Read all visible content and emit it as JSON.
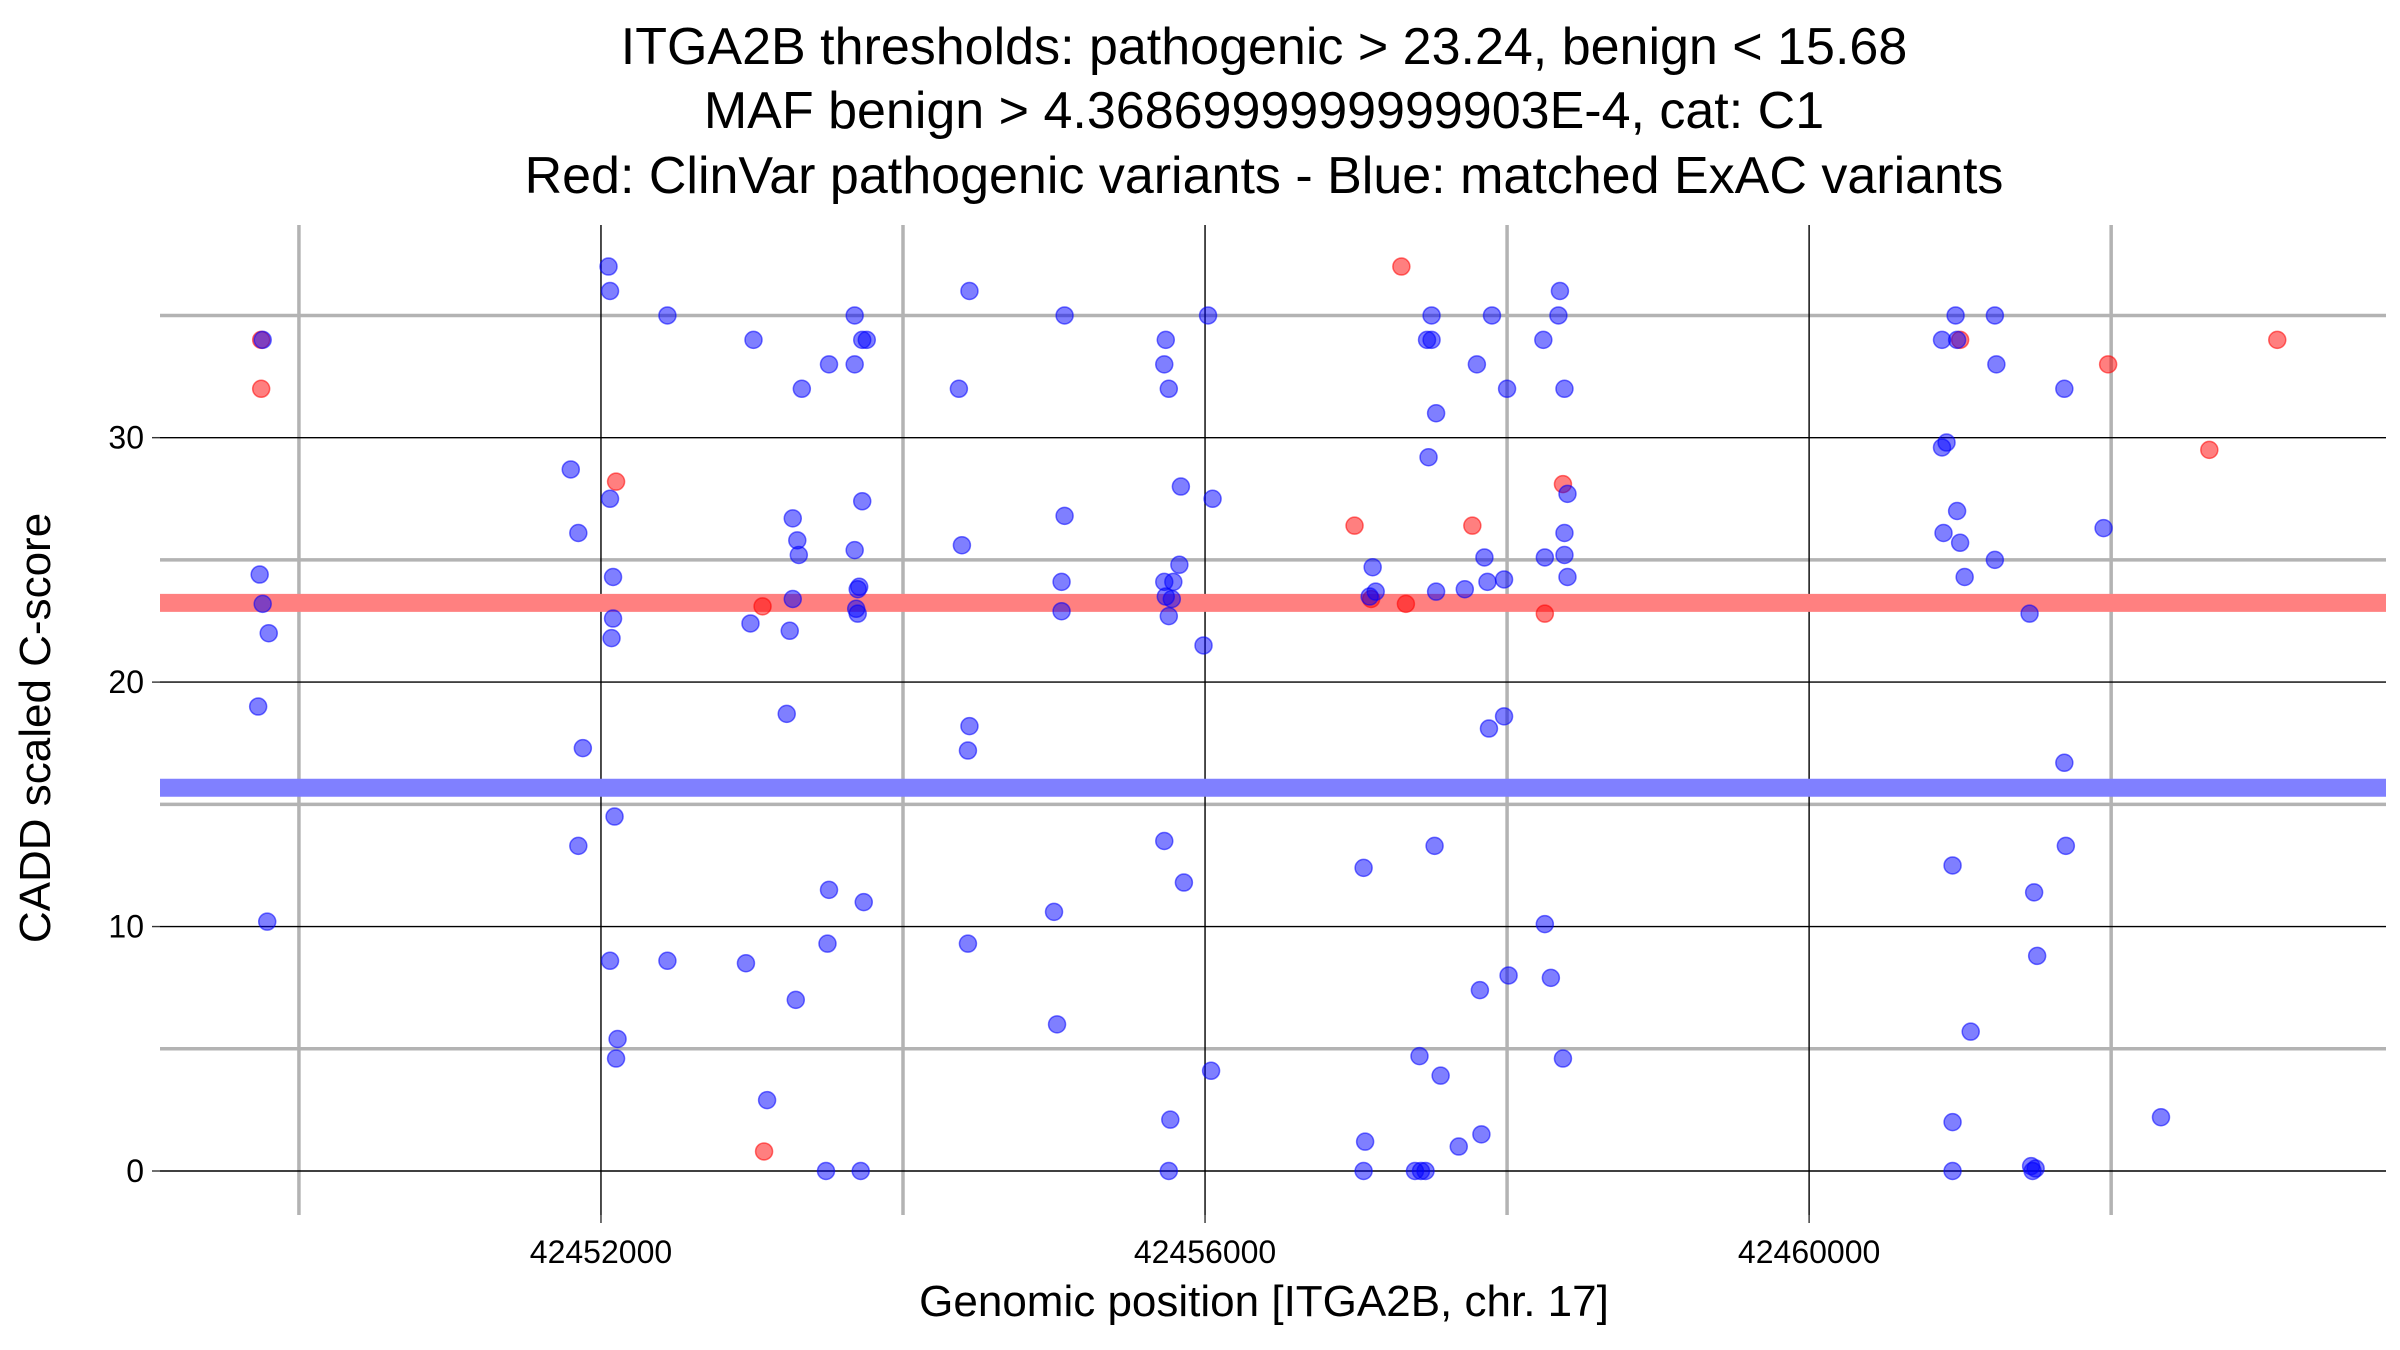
{
  "chart_data": {
    "type": "scatter",
    "title": [
      "ITGA2B thresholds: pathogenic > 23.24, benign < 15.68",
      "MAF benign > 4.3686999999999903E-4, cat: C1",
      "Red: ClinVar pathogenic variants - Blue: matched ExAC variants"
    ],
    "xlabel": "Genomic position [ITGA2B, chr. 17]",
    "ylabel": "CADD scaled C-score",
    "xlim": [
      42449080,
      42463820
    ],
    "ylim": [
      -1.8,
      38.7
    ],
    "x_ticks": [
      42452000,
      42456000,
      42460000
    ],
    "y_ticks": [
      0,
      10,
      20,
      30
    ],
    "x_minor_gridlines": [
      42450000,
      42454000,
      42458000,
      42462000
    ],
    "y_minor_gridlines": [
      5,
      15,
      25,
      35
    ],
    "grid": true,
    "legend": "none",
    "thresholds": {
      "pathogenic": 23.24,
      "benign": 15.68,
      "pathogenic_color": "#ff8080",
      "benign_color": "#8080ff"
    },
    "series": [
      {
        "color": "#ff0000",
        "points": [
          [
            42449750,
            34
          ],
          [
            42449750,
            32
          ],
          [
            42452100,
            28.2
          ],
          [
            42453070,
            23.1
          ],
          [
            42453080,
            0.8
          ],
          [
            42456990,
            26.4
          ],
          [
            42457100,
            23.4
          ],
          [
            42457300,
            37
          ],
          [
            42457330,
            23.2
          ],
          [
            42457770,
            26.4
          ],
          [
            42458250,
            22.8
          ],
          [
            42458370,
            28.1
          ],
          [
            42461000,
            34
          ],
          [
            42461980,
            33
          ],
          [
            42462650,
            29.5
          ],
          [
            42463100,
            34
          ]
        ]
      },
      {
        "color": "#0000ff",
        "points": [
          [
            42449760,
            34
          ],
          [
            42449740,
            24.4
          ],
          [
            42449760,
            23.2
          ],
          [
            42449800,
            22
          ],
          [
            42449730,
            19
          ],
          [
            42449790,
            10.2
          ],
          [
            42451800,
            28.7
          ],
          [
            42451850,
            26.1
          ],
          [
            42451880,
            17.3
          ],
          [
            42451850,
            13.3
          ],
          [
            42452050,
            37
          ],
          [
            42452060,
            36
          ],
          [
            42452060,
            27.5
          ],
          [
            42452080,
            24.3
          ],
          [
            42452080,
            22.6
          ],
          [
            42452070,
            21.8
          ],
          [
            42452090,
            14.5
          ],
          [
            42452060,
            8.6
          ],
          [
            42452110,
            5.4
          ],
          [
            42452100,
            4.6
          ],
          [
            42452440,
            35
          ],
          [
            42452440,
            8.6
          ],
          [
            42453010,
            34
          ],
          [
            42452990,
            22.4
          ],
          [
            42452960,
            8.5
          ],
          [
            42453100,
            2.9
          ],
          [
            42453250,
            22.1
          ],
          [
            42453230,
            18.7
          ],
          [
            42453270,
            26.7
          ],
          [
            42453300,
            25.8
          ],
          [
            42453310,
            25.2
          ],
          [
            42453270,
            23.4
          ],
          [
            42453290,
            7
          ],
          [
            42453330,
            32
          ],
          [
            42453510,
            33
          ],
          [
            42453510,
            11.5
          ],
          [
            42453500,
            9.3
          ],
          [
            42453490,
            0
          ],
          [
            42453680,
            35
          ],
          [
            42453680,
            33
          ],
          [
            42453680,
            25.4
          ],
          [
            42453710,
            23.9
          ],
          [
            42453700,
            23.8
          ],
          [
            42453690,
            23
          ],
          [
            42453700,
            22.8
          ],
          [
            42453730,
            27.4
          ],
          [
            42453740,
            11
          ],
          [
            42453720,
            0
          ],
          [
            42453730,
            34
          ],
          [
            42453760,
            34
          ],
          [
            42454370,
            32
          ],
          [
            42454390,
            25.6
          ],
          [
            42454440,
            36
          ],
          [
            42454440,
            18.2
          ],
          [
            42454430,
            17.2
          ],
          [
            42454430,
            9.3
          ],
          [
            42455070,
            35
          ],
          [
            42455070,
            26.8
          ],
          [
            42455050,
            24.1
          ],
          [
            42455050,
            22.9
          ],
          [
            42455000,
            10.6
          ],
          [
            42455020,
            6
          ],
          [
            42455740,
            34
          ],
          [
            42455730,
            33
          ],
          [
            42455760,
            32
          ],
          [
            42455730,
            24.1
          ],
          [
            42455790,
            24.1
          ],
          [
            42455740,
            23.5
          ],
          [
            42455780,
            23.4
          ],
          [
            42455760,
            22.7
          ],
          [
            42455840,
            28
          ],
          [
            42455830,
            24.8
          ],
          [
            42455730,
            13.5
          ],
          [
            42455860,
            11.8
          ],
          [
            42455770,
            2.1
          ],
          [
            42455760,
            0
          ],
          [
            42456020,
            35
          ],
          [
            42456050,
            27.5
          ],
          [
            42455990,
            21.5
          ],
          [
            42456040,
            4.1
          ],
          [
            42457110,
            24.7
          ],
          [
            42457130,
            23.7
          ],
          [
            42457090,
            23.5
          ],
          [
            42457050,
            12.4
          ],
          [
            42457060,
            1.2
          ],
          [
            42457050,
            0
          ],
          [
            42457500,
            35
          ],
          [
            42457500,
            34
          ],
          [
            42457470,
            34
          ],
          [
            42457530,
            31
          ],
          [
            42457480,
            29.2
          ],
          [
            42457530,
            23.7
          ],
          [
            42457720,
            23.8
          ],
          [
            42457850,
            25.1
          ],
          [
            42457870,
            24.1
          ],
          [
            42457520,
            13.3
          ],
          [
            42457420,
            4.7
          ],
          [
            42457560,
            3.9
          ],
          [
            42457390,
            0
          ],
          [
            42457460,
            0
          ],
          [
            42457430,
            0
          ],
          [
            42457680,
            1
          ],
          [
            42457800,
            33
          ],
          [
            42457820,
            7.4
          ],
          [
            42457830,
            1.5
          ],
          [
            42457900,
            35
          ],
          [
            42457880,
            18.1
          ],
          [
            42458000,
            32
          ],
          [
            42457980,
            24.2
          ],
          [
            42457980,
            18.6
          ],
          [
            42458010,
            8
          ],
          [
            42458240,
            34
          ],
          [
            42458250,
            25.1
          ],
          [
            42458250,
            10.1
          ],
          [
            42458290,
            7.9
          ],
          [
            42458350,
            36
          ],
          [
            42458340,
            35
          ],
          [
            42458380,
            32
          ],
          [
            42458400,
            27.7
          ],
          [
            42458380,
            26.1
          ],
          [
            42458380,
            25.2
          ],
          [
            42458400,
            24.3
          ],
          [
            42458370,
            4.6
          ],
          [
            42460880,
            34
          ],
          [
            42460880,
            29.6
          ],
          [
            42460910,
            29.8
          ],
          [
            42460890,
            26.1
          ],
          [
            42460970,
            35
          ],
          [
            42460980,
            34
          ],
          [
            42460980,
            27
          ],
          [
            42461000,
            25.7
          ],
          [
            42461030,
            24.3
          ],
          [
            42460950,
            12.5
          ],
          [
            42461070,
            5.7
          ],
          [
            42460950,
            2
          ],
          [
            42460950,
            0
          ],
          [
            42461230,
            35
          ],
          [
            42461240,
            33
          ],
          [
            42461230,
            25
          ],
          [
            42461460,
            22.8
          ],
          [
            42461490,
            11.4
          ],
          [
            42461510,
            8.8
          ],
          [
            42461470,
            0.2
          ],
          [
            42461500,
            0.1
          ],
          [
            42461480,
            0
          ],
          [
            42461690,
            32
          ],
          [
            42461690,
            16.7
          ],
          [
            42461700,
            13.3
          ],
          [
            42461950,
            26.3
          ],
          [
            42462330,
            2.2
          ]
        ]
      }
    ]
  }
}
